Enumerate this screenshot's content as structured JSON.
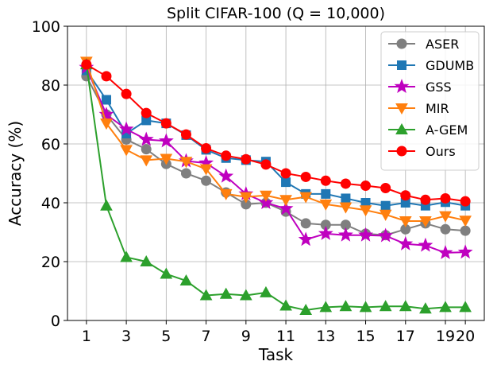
{
  "chart_data": {
    "type": "line",
    "title": "Split CIFAR-100 (Q = 10,000)",
    "xlabel": "Task",
    "ylabel": "Accuracy (%)",
    "xlim": [
      0.05,
      20.95
    ],
    "ylim": [
      0,
      100
    ],
    "x_ticks": [
      1,
      3,
      5,
      7,
      9,
      11,
      13,
      15,
      17,
      19,
      20
    ],
    "x_tick_labels": [
      "1",
      "3",
      "5",
      "7",
      "9",
      "11",
      "13",
      "15",
      "17",
      "19",
      "20"
    ],
    "y_ticks": [
      0,
      20,
      40,
      60,
      80,
      100
    ],
    "grid": true,
    "legend_position": "top-right",
    "x": [
      1,
      2,
      3,
      4,
      5,
      6,
      7,
      8,
      9,
      10,
      11,
      12,
      13,
      14,
      15,
      16,
      17,
      18,
      19,
      20
    ],
    "series": [
      {
        "name": "ASER",
        "color": "#7f7f7f",
        "marker": "circle",
        "values": [
          83,
          70,
          61.5,
          58.2,
          53.2,
          50,
          47.5,
          43.5,
          39.5,
          40,
          37,
          33,
          32.5,
          32.5,
          29.5,
          29,
          31,
          33,
          31,
          30.5
        ]
      },
      {
        "name": "GDUMB",
        "color": "#1f77b4",
        "marker": "square",
        "values": [
          85,
          75,
          63.5,
          68,
          67,
          63,
          58,
          55.2,
          54.5,
          54,
          47,
          43,
          43,
          41.5,
          40,
          39,
          40,
          39,
          40.2,
          39
        ]
      },
      {
        "name": "GSS",
        "color": "#bf00bf",
        "marker": "star",
        "values": [
          86,
          70,
          65,
          61.5,
          61,
          54.2,
          53.5,
          49,
          43,
          40,
          38,
          27.5,
          29.5,
          29,
          29,
          28.8,
          26,
          25.5,
          23,
          23.2
        ]
      },
      {
        "name": "MIR",
        "color": "#ff7f0e",
        "marker": "triangle-down",
        "values": [
          88,
          67,
          58,
          54.5,
          55,
          54,
          51.5,
          43,
          42,
          42.5,
          41,
          42,
          39.5,
          38.5,
          37.5,
          36,
          33.8,
          33.8,
          35.5,
          34
        ]
      },
      {
        "name": "A-GEM",
        "color": "#2ca02c",
        "marker": "triangle-up",
        "values": [
          87,
          39,
          21.5,
          20,
          15.8,
          13.5,
          8.5,
          9,
          8.5,
          9.5,
          5,
          3.5,
          4.5,
          4.8,
          4.5,
          4.8,
          4.8,
          4,
          4.5,
          4.5
        ]
      },
      {
        "name": "Ours",
        "color": "#ff0000",
        "marker": "circle",
        "values": [
          87,
          83,
          77,
          70.5,
          67,
          63.2,
          58.5,
          56,
          54.8,
          53,
          50,
          48.8,
          47.5,
          46.5,
          45.8,
          45,
          42.5,
          41,
          41.5,
          40.5
        ]
      }
    ]
  }
}
